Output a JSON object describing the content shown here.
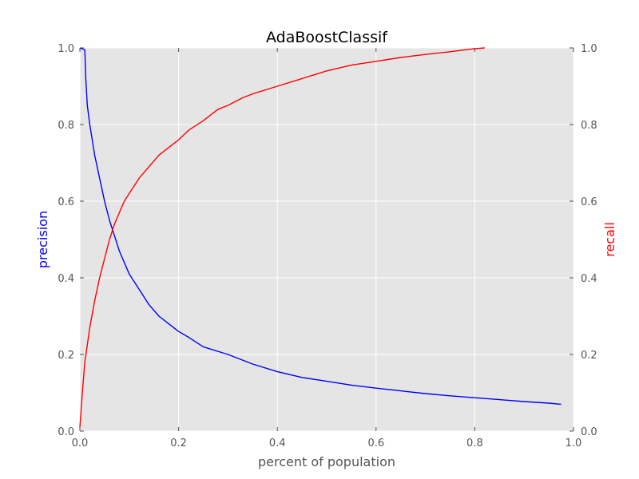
{
  "chart_data": {
    "type": "line",
    "title": "AdaBoostClassif",
    "xlabel": "percent of population",
    "ylabel_left": "precision",
    "ylabel_right": "recall",
    "xlim": [
      0.0,
      1.0
    ],
    "ylim": [
      0.0,
      1.0
    ],
    "grid": true,
    "x_ticks": [
      "0.0",
      "0.2",
      "0.4",
      "0.6",
      "0.8",
      "1.0"
    ],
    "y_ticks_left": [
      "0.0",
      "0.2",
      "0.4",
      "0.6",
      "0.8",
      "1.0"
    ],
    "y_ticks_right": [
      "0.0",
      "0.2",
      "0.4",
      "0.6",
      "0.8",
      "1.0"
    ],
    "colors": {
      "background": "#e5e5e5",
      "grid": "#ffffff",
      "precision": "#0000ff",
      "recall": "#ff0000",
      "left_label": "#0000ff",
      "right_label": "#ff0000"
    },
    "series": [
      {
        "axis": "left",
        "color": "#0000ff",
        "x": [
          0.0,
          0.01,
          0.012,
          0.015,
          0.02,
          0.025,
          0.03,
          0.04,
          0.05,
          0.06,
          0.07,
          0.08,
          0.09,
          0.1,
          0.12,
          0.14,
          0.16,
          0.18,
          0.2,
          0.22,
          0.25,
          0.3,
          0.35,
          0.4,
          0.45,
          0.5,
          0.55,
          0.6,
          0.65,
          0.7,
          0.75,
          0.8,
          0.85,
          0.9,
          0.95,
          0.975
        ],
        "y": [
          1.0,
          0.995,
          0.92,
          0.85,
          0.8,
          0.76,
          0.72,
          0.66,
          0.6,
          0.55,
          0.51,
          0.47,
          0.44,
          0.41,
          0.37,
          0.33,
          0.3,
          0.28,
          0.26,
          0.245,
          0.22,
          0.2,
          0.175,
          0.155,
          0.14,
          0.13,
          0.12,
          0.112,
          0.105,
          0.098,
          0.092,
          0.087,
          0.082,
          0.077,
          0.073,
          0.07
        ]
      },
      {
        "axis": "right",
        "color": "#ff0000",
        "x": [
          0.0,
          0.005,
          0.01,
          0.02,
          0.03,
          0.04,
          0.05,
          0.06,
          0.07,
          0.08,
          0.09,
          0.1,
          0.12,
          0.14,
          0.16,
          0.18,
          0.2,
          0.22,
          0.25,
          0.28,
          0.3,
          0.33,
          0.35,
          0.4,
          0.45,
          0.5,
          0.55,
          0.6,
          0.65,
          0.7,
          0.75,
          0.78,
          0.8,
          0.82
        ],
        "y": [
          0.01,
          0.1,
          0.18,
          0.27,
          0.34,
          0.4,
          0.45,
          0.5,
          0.54,
          0.57,
          0.6,
          0.62,
          0.66,
          0.69,
          0.72,
          0.74,
          0.76,
          0.785,
          0.81,
          0.84,
          0.85,
          0.87,
          0.88,
          0.9,
          0.92,
          0.94,
          0.955,
          0.965,
          0.975,
          0.983,
          0.99,
          0.995,
          0.998,
          1.0
        ]
      }
    ]
  }
}
